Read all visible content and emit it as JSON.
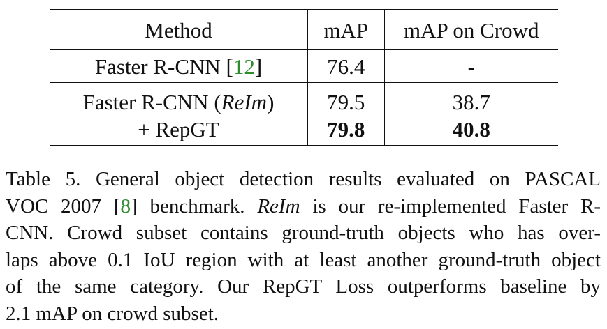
{
  "table": {
    "headers": [
      "Method",
      "mAP",
      "mAP on Crowd"
    ],
    "rows": [
      {
        "method_prefix": "Faster R-CNN [",
        "method_cite": "12",
        "method_suffix": "]",
        "map": "76.4",
        "crowd": "-"
      },
      {
        "method_prefix": "Faster R-CNN (",
        "method_italic": "ReIm",
        "method_suffix": ")",
        "map": "79.5",
        "crowd": "38.7"
      },
      {
        "method": "+ RepGT",
        "map": "79.8",
        "crowd": "40.8",
        "bold": true
      }
    ]
  },
  "caption": {
    "line1": "Table 5. General object detection results evaluated on PASCAL",
    "line2_a": "VOC 2007 [",
    "line2_cite": "8",
    "line2_b": "] benchmark. ",
    "line2_italic": "ReIm",
    "line2_c": " is our re-implemented Faster R-",
    "line3": "CNN. Crowd subset contains ground-truth objects who has over-",
    "line4": "laps above 0.1 IoU region with at least another ground-truth object",
    "line5": "of the same category. Our RepGT Loss outperforms baseline by",
    "line6": "2.1 mAP on crowd subset."
  },
  "colors": {
    "citation": "#2e8b2e",
    "text": "#111111"
  }
}
